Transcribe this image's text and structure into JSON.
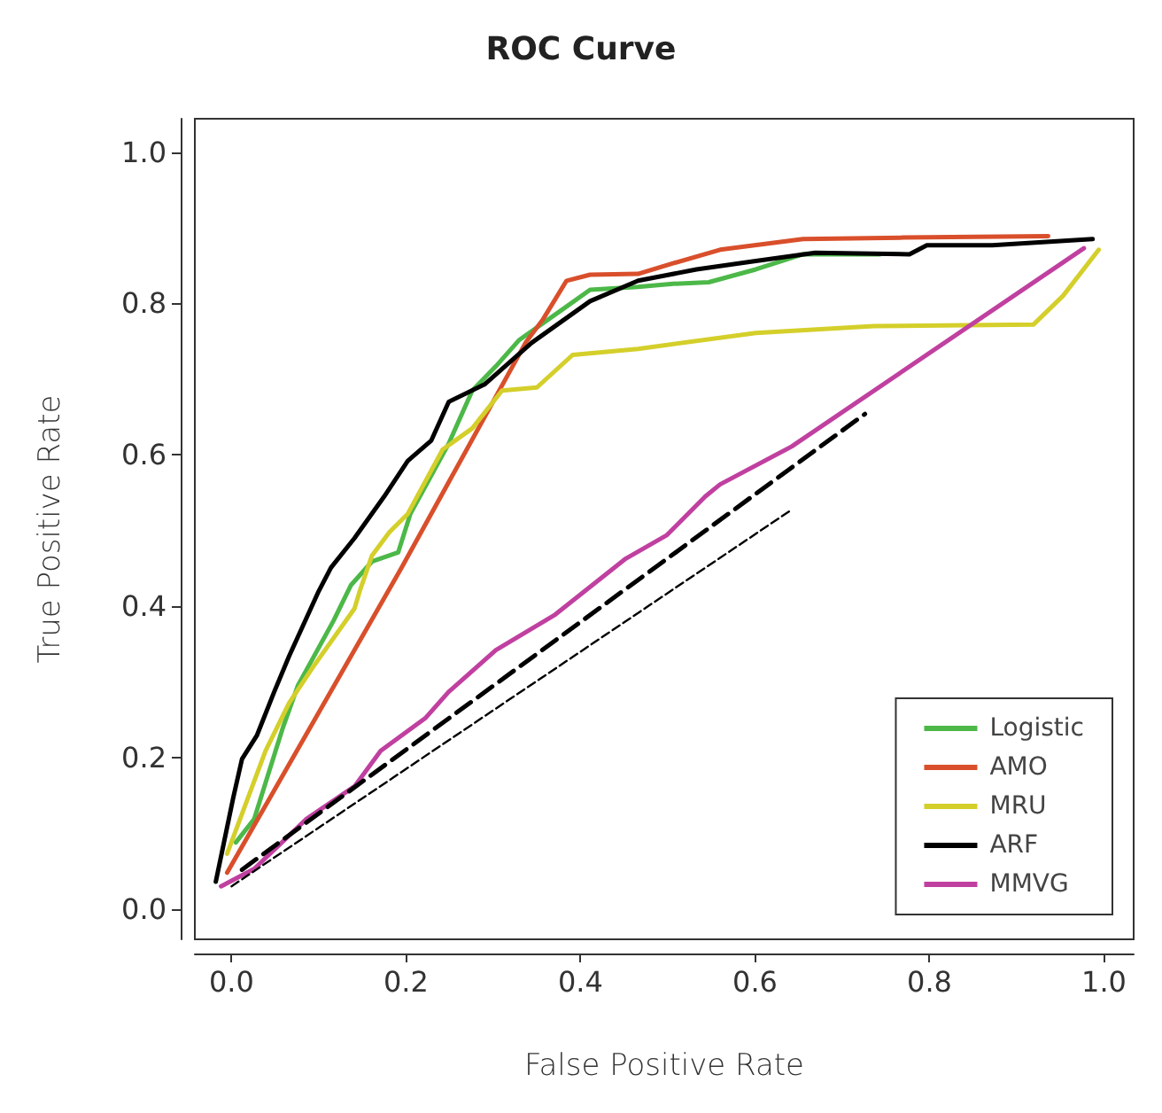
{
  "chart_data": {
    "type": "line",
    "title": "ROC Curve",
    "xlabel": "False Positive Rate",
    "ylabel": "True Positive Rate",
    "xlim": [
      -0.042,
      1.034
    ],
    "ylim": [
      -0.04,
      1.044
    ],
    "xticks": [
      {
        "value": 0,
        "label": "0.0"
      },
      0.2,
      0.4,
      0.6,
      0.8,
      {
        "value": 1,
        "label": "1.0"
      }
    ],
    "yticks": [
      {
        "value": 0,
        "label": "0.0"
      },
      0.2,
      0.4,
      0.6,
      0.8,
      {
        "value": 1,
        "label": "1.0"
      }
    ],
    "grid": false,
    "legend": "bottom right",
    "marker": "none",
    "line_style": "solid",
    "series": [
      {
        "name": "Logistic",
        "color": "#4cb848",
        "x": [
          0.005,
          0.026,
          0.059,
          0.076,
          0.117,
          0.137,
          0.161,
          0.191,
          0.205,
          0.249,
          0.276,
          0.303,
          0.33,
          0.378,
          0.411,
          0.466,
          0.506,
          0.547,
          0.601,
          0.655,
          0.743
        ],
        "values": [
          0.088,
          0.119,
          0.24,
          0.295,
          0.381,
          0.428,
          0.459,
          0.471,
          0.522,
          0.615,
          0.685,
          0.717,
          0.752,
          0.791,
          0.818,
          0.822,
          0.826,
          0.828,
          0.845,
          0.865,
          0.865
        ]
      },
      {
        "name": "AMO",
        "color": "#d94f2b",
        "x": [
          -0.005,
          0.195,
          0.337,
          0.357,
          0.384,
          0.411,
          0.466,
          0.506,
          0.56,
          0.655,
          0.77,
          0.936
        ],
        "values": [
          0.048,
          0.451,
          0.748,
          0.779,
          0.83,
          0.838,
          0.839,
          0.853,
          0.871,
          0.885,
          0.887,
          0.889
        ]
      },
      {
        "name": "MRU",
        "color": "#d4cf2a",
        "x": [
          -0.005,
          0.039,
          0.066,
          0.093,
          0.141,
          0.147,
          0.161,
          0.181,
          0.202,
          0.242,
          0.276,
          0.31,
          0.35,
          0.391,
          0.466,
          0.601,
          0.736,
          0.919,
          0.953,
          0.994
        ],
        "values": [
          0.073,
          0.209,
          0.272,
          0.319,
          0.397,
          0.42,
          0.467,
          0.498,
          0.522,
          0.607,
          0.635,
          0.685,
          0.689,
          0.732,
          0.74,
          0.761,
          0.77,
          0.772,
          0.81,
          0.871
        ]
      },
      {
        "name": "ARF",
        "color": "#000000",
        "x": [
          -0.018,
          0.002,
          0.012,
          0.029,
          0.049,
          0.066,
          0.1,
          0.114,
          0.141,
          0.175,
          0.202,
          0.229,
          0.249,
          0.29,
          0.344,
          0.411,
          0.466,
          0.533,
          0.601,
          0.669,
          0.777,
          0.797,
          0.872,
          0.987
        ],
        "values": [
          0.036,
          0.147,
          0.198,
          0.229,
          0.287,
          0.334,
          0.42,
          0.451,
          0.49,
          0.545,
          0.592,
          0.619,
          0.67,
          0.693,
          0.748,
          0.803,
          0.83,
          0.845,
          0.856,
          0.867,
          0.865,
          0.877,
          0.877,
          0.885
        ]
      },
      {
        "name": "MMVG",
        "color": "#c040a0",
        "x": [
          -0.012,
          0.026,
          0.086,
          0.141,
          0.171,
          0.222,
          0.249,
          0.303,
          0.371,
          0.452,
          0.499,
          0.543,
          0.56,
          0.642,
          0.977
        ],
        "values": [
          0.03,
          0.053,
          0.119,
          0.162,
          0.209,
          0.252,
          0.287,
          0.342,
          0.389,
          0.463,
          0.494,
          0.545,
          0.561,
          0.611,
          0.873
        ]
      },
      {
        "color": "#000000",
        "line_style": "dashed",
        "x": [
          0.012,
          0.726
        ],
        "values": [
          0.052,
          0.654
        ]
      },
      {
        "color": "#000000",
        "line_style": "dashed",
        "x": [
          0,
          0.64
        ],
        "values": [
          0.03,
          0.526
        ]
      }
    ]
  }
}
